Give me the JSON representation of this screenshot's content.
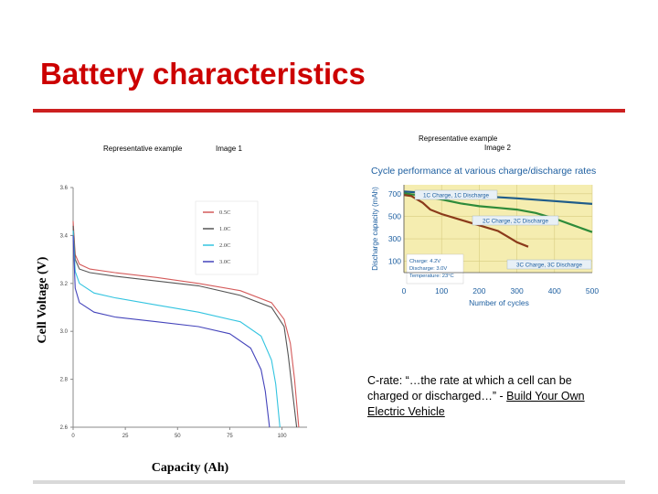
{
  "slide": {
    "title": "Battery characteristics",
    "caption_left_a": "Representative example",
    "caption_left_b": "Image 1",
    "caption_right_a": "Representative example",
    "caption_right_b": "Image 2",
    "note_text": "C-rate: “…the rate at which a cell can be charged or discharged…” - ",
    "note_link": "Build Your Own Electric Vehicle",
    "accent_color": "#cc0000"
  },
  "chart_data": [
    {
      "type": "line",
      "xlabel": "Capacity (Ah)",
      "ylabel": "Cell Voltage (V)",
      "xlim": [
        0,
        112
      ],
      "ylim": [
        2.6,
        3.6
      ],
      "x_ticks": [
        "0",
        "25",
        "50",
        "75",
        "100"
      ],
      "y_ticks": [
        "2.6",
        "2.8",
        "3.0",
        "3.2",
        "3.4",
        "3.6"
      ],
      "legend_position": "top-right",
      "series": [
        {
          "name": "0.5C",
          "color": "#d45a5a",
          "points": [
            [
              0,
              3.46
            ],
            [
              1,
              3.32
            ],
            [
              3,
              3.28
            ],
            [
              8,
              3.26
            ],
            [
              20,
              3.245
            ],
            [
              40,
              3.225
            ],
            [
              60,
              3.2
            ],
            [
              80,
              3.17
            ],
            [
              95,
              3.12
            ],
            [
              101,
              3.05
            ],
            [
              104,
              2.95
            ],
            [
              106,
              2.8
            ],
            [
              108,
              2.6
            ]
          ]
        },
        {
          "name": "1.0C",
          "color": "#555555",
          "points": [
            [
              0,
              3.44
            ],
            [
              1,
              3.3
            ],
            [
              3,
              3.26
            ],
            [
              8,
              3.245
            ],
            [
              20,
              3.23
            ],
            [
              40,
              3.21
            ],
            [
              60,
              3.19
            ],
            [
              80,
              3.15
            ],
            [
              95,
              3.1
            ],
            [
              101,
              3.02
            ],
            [
              103,
              2.9
            ],
            [
              105,
              2.75
            ],
            [
              107,
              2.6
            ]
          ]
        },
        {
          "name": "2.0C",
          "color": "#33c4e0",
          "points": [
            [
              0,
              3.42
            ],
            [
              1,
              3.25
            ],
            [
              3,
              3.2
            ],
            [
              10,
              3.16
            ],
            [
              20,
              3.14
            ],
            [
              40,
              3.11
            ],
            [
              60,
              3.08
            ],
            [
              80,
              3.04
            ],
            [
              90,
              2.98
            ],
            [
              95,
              2.88
            ],
            [
              97,
              2.78
            ],
            [
              99,
              2.6
            ]
          ]
        },
        {
          "name": "3.0C",
          "color": "#4444bb",
          "points": [
            [
              0,
              3.4
            ],
            [
              1,
              3.18
            ],
            [
              3,
              3.12
            ],
            [
              10,
              3.08
            ],
            [
              20,
              3.06
            ],
            [
              40,
              3.04
            ],
            [
              60,
              3.02
            ],
            [
              75,
              2.99
            ],
            [
              85,
              2.93
            ],
            [
              90,
              2.84
            ],
            [
              92,
              2.75
            ],
            [
              94,
              2.6
            ]
          ]
        }
      ]
    },
    {
      "type": "line",
      "title": "Cycle performance at various charge/discharge rates",
      "xlabel": "Number of cycles",
      "ylabel": "Discharge capacity (mAh)",
      "xlim": [
        0,
        500
      ],
      "ylim": [
        0,
        780
      ],
      "x_ticks": [
        "0",
        "100",
        "200",
        "300",
        "400",
        "500"
      ],
      "y_ticks": [
        "100",
        "300",
        "500",
        "700"
      ],
      "annotations": [
        "Charge: 4.2V",
        "Discharge: 3.0V",
        "Temperature: 23°C"
      ],
      "series": [
        {
          "name": "1C Charge, 1C Discharge",
          "color": "#1f5c8a",
          "points": [
            [
              0,
              720
            ],
            [
              50,
              710
            ],
            [
              100,
              700
            ],
            [
              200,
              680
            ],
            [
              300,
              660
            ],
            [
              400,
              635
            ],
            [
              500,
              610
            ]
          ]
        },
        {
          "name": "2C Charge, 2C Discharge",
          "color": "#2e8b3a",
          "points": [
            [
              0,
              705
            ],
            [
              50,
              680
            ],
            [
              100,
              650
            ],
            [
              150,
              615
            ],
            [
              200,
              590
            ],
            [
              250,
              575
            ],
            [
              300,
              560
            ],
            [
              350,
              530
            ],
            [
              400,
              480
            ],
            [
              450,
              420
            ],
            [
              500,
              360
            ]
          ]
        },
        {
          "name": "3C Charge, 3C Discharge",
          "color": "#8b3a1a",
          "points": [
            [
              0,
              690
            ],
            [
              20,
              680
            ],
            [
              50,
              620
            ],
            [
              70,
              560
            ],
            [
              100,
              520
            ],
            [
              150,
              470
            ],
            [
              200,
              420
            ],
            [
              250,
              370
            ],
            [
              280,
              310
            ],
            [
              300,
              270
            ],
            [
              330,
              230
            ]
          ]
        }
      ]
    }
  ]
}
